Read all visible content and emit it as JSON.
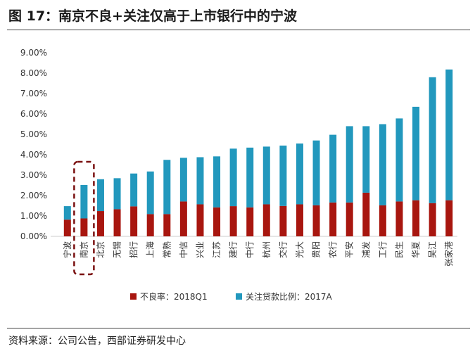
{
  "title": "图 17：南京不良+关注仅高于上市银行中的宁波",
  "source": "资料来源：公司公告，西部证券研发中心",
  "chart_data": {
    "type": "bar",
    "stacked": true,
    "categories": [
      "宁波",
      "南京",
      "北京",
      "无锡",
      "招行",
      "上海",
      "常熟",
      "中信",
      "兴业",
      "江苏",
      "建行",
      "中行",
      "杭州",
      "交行",
      "光大",
      "贵阳",
      "农行",
      "平安",
      "浦发",
      "工行",
      "民生",
      "华夏",
      "吴江",
      "张家港"
    ],
    "series": [
      {
        "name": "不良率：2018Q1",
        "color": "#A8160F",
        "values": [
          0.82,
          0.88,
          1.24,
          1.33,
          1.47,
          1.09,
          1.09,
          1.71,
          1.57,
          1.42,
          1.48,
          1.42,
          1.57,
          1.49,
          1.57,
          1.52,
          1.66,
          1.66,
          2.14,
          1.52,
          1.71,
          1.77,
          1.63,
          1.77
        ]
      },
      {
        "name": "关注贷款比例：2017A",
        "color": "#2298BD",
        "values": [
          0.66,
          1.64,
          1.56,
          1.52,
          1.61,
          2.09,
          2.66,
          2.14,
          2.31,
          2.5,
          2.82,
          2.93,
          2.83,
          2.96,
          2.98,
          3.18,
          3.32,
          3.74,
          3.26,
          3.98,
          4.07,
          4.58,
          6.17,
          6.41
        ]
      }
    ],
    "yticks": [
      "0.00%",
      "1.00%",
      "2.00%",
      "3.00%",
      "4.00%",
      "5.00%",
      "6.00%",
      "7.00%",
      "8.00%",
      "9.00%"
    ],
    "ylim": [
      0,
      9
    ],
    "highlight": "南京",
    "legend": "bottom"
  }
}
